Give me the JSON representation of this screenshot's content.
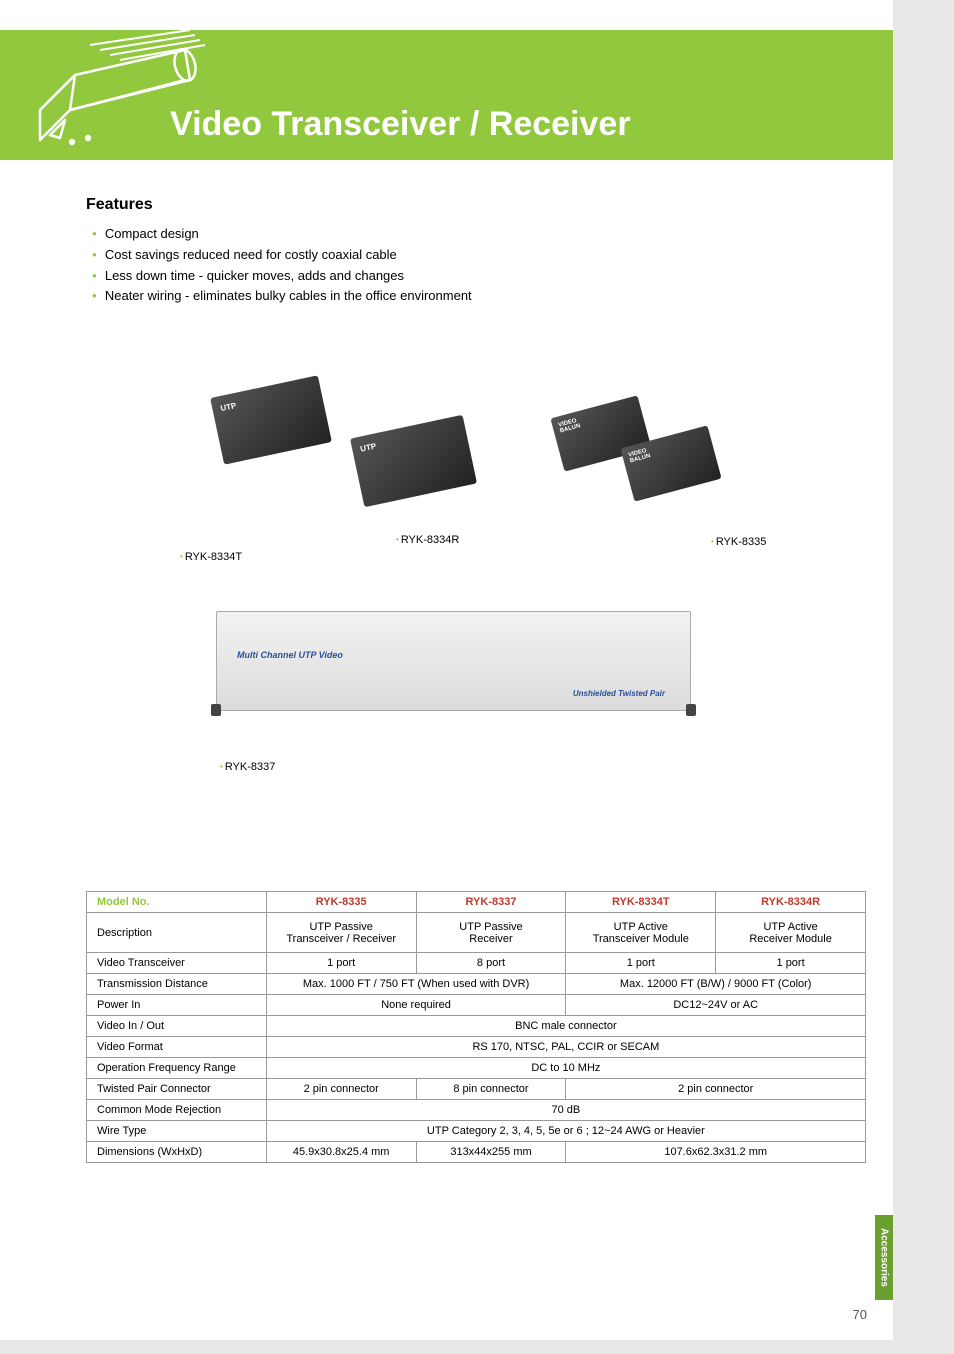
{
  "page": {
    "title": "Video Transceiver / Receiver",
    "page_number": "70",
    "side_tab": "Accessories",
    "colors": {
      "brand_green": "#92c83e",
      "dark_band": "#6b6b6b",
      "model_red": "#bd3b2e"
    }
  },
  "features": {
    "heading": "Features",
    "items": [
      "Compact design",
      "Cost savings reduced need for costly coaxial cable",
      "Less down time - quicker moves, adds and changes",
      "Neater wiring - eliminates bulky cables in the office environment"
    ]
  },
  "product_labels": {
    "p1": "RYK-8334T",
    "p2": "RYK-8334R",
    "p3": "RYK-8335",
    "p4": "RYK-8337",
    "rack_text1": "Multi Channel UTP Video",
    "rack_text2": "Unshielded Twisted Pair"
  },
  "spec_table": {
    "header_label": "Model No.",
    "columns": [
      "RYK-8335",
      "RYK-8337",
      "RYK-8334T",
      "RYK-8334R"
    ],
    "rows": [
      {
        "label": "Description",
        "cells": [
          [
            "UTP Passive",
            "Transceiver / Receiver"
          ],
          [
            "UTP Passive",
            "Receiver"
          ],
          [
            "UTP Active",
            "Transceiver Module"
          ],
          [
            "UTP Active",
            "Receiver Module"
          ]
        ],
        "two_line": true
      },
      {
        "label": "Video Transceiver",
        "cells": [
          "1 port",
          "8 port",
          "1 port",
          "1 port"
        ]
      },
      {
        "label": "Transmission Distance",
        "merge": [
          [
            0,
            2,
            "Max. 1000 FT / 750 FT (When used with DVR)"
          ],
          [
            2,
            2,
            "Max. 12000 FT (B/W) / 9000 FT (Color)"
          ]
        ]
      },
      {
        "label": "Power In",
        "merge": [
          [
            0,
            2,
            "None required"
          ],
          [
            2,
            2,
            "DC12~24V or AC"
          ]
        ]
      },
      {
        "label": "Video In / Out",
        "merge": [
          [
            0,
            4,
            "BNC male connector"
          ]
        ]
      },
      {
        "label": "Video Format",
        "merge": [
          [
            0,
            4,
            "RS 170, NTSC, PAL, CCIR or SECAM"
          ]
        ]
      },
      {
        "label": "Operation Frequency Range",
        "merge": [
          [
            0,
            4,
            "DC to 10 MHz"
          ]
        ]
      },
      {
        "label": "Twisted Pair Connector",
        "merge": [
          [
            0,
            1,
            "2 pin connector"
          ],
          [
            1,
            1,
            "8 pin connector"
          ],
          [
            2,
            2,
            "2 pin connector"
          ]
        ]
      },
      {
        "label": "Common Mode Rejection",
        "merge": [
          [
            0,
            4,
            "70 dB"
          ]
        ]
      },
      {
        "label": "Wire Type",
        "merge": [
          [
            0,
            4,
            "UTP Category 2, 3, 4, 5, 5e or 6 ; 12~24 AWG or Heavier"
          ]
        ]
      },
      {
        "label": "Dimensions (WxHxD)",
        "merge": [
          [
            0,
            1,
            "45.9x30.8x25.4 mm"
          ],
          [
            1,
            1,
            "313x44x255 mm"
          ],
          [
            2,
            2,
            "107.6x62.3x31.2 mm"
          ]
        ]
      }
    ]
  }
}
